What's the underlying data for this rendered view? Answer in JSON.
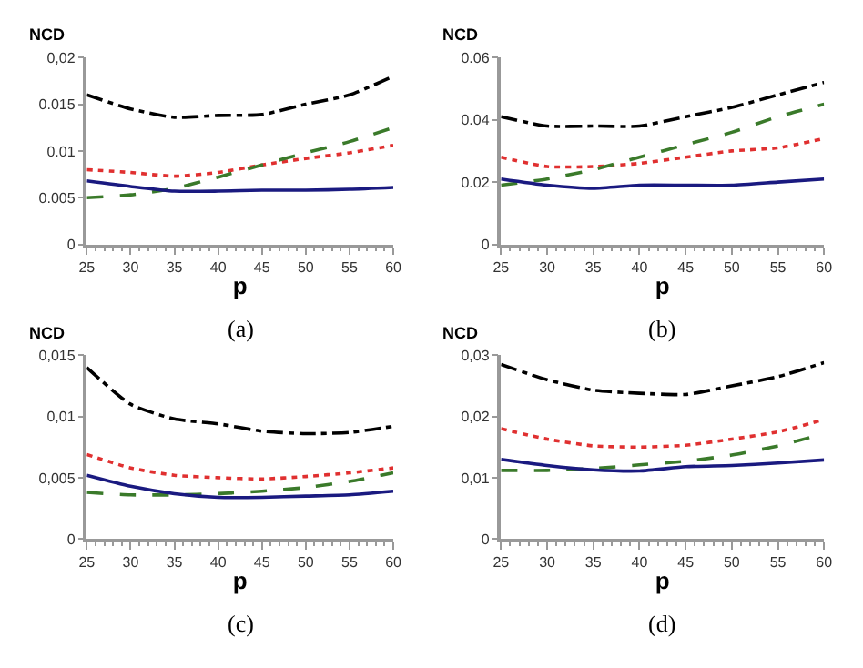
{
  "chart_data": [
    {
      "type": "line",
      "ylabel": "NCD",
      "xlabel": "p",
      "annotations": [
        "(a)"
      ],
      "x": [
        25,
        30,
        35,
        40,
        45,
        50,
        55,
        60
      ],
      "xlim": [
        25,
        60
      ],
      "xticks": [
        25,
        30,
        35,
        40,
        45,
        50,
        55,
        60
      ],
      "ylim": [
        0,
        0.02
      ],
      "yticks": [
        0,
        {
          "value": 0.005,
          "label": "0.005"
        },
        {
          "value": 0.01,
          "label": "0.01"
        },
        {
          "value": 0.015,
          "label": "0.015"
        },
        {
          "value": 0.02,
          "label": "0,02"
        }
      ],
      "marker": "none",
      "series": [
        {
          "color": "#000000",
          "line_style": "dashdot",
          "values": [
            0.016,
            0.0145,
            0.0136,
            0.0138,
            0.0139,
            0.015,
            0.016,
            0.018
          ]
        },
        {
          "color": "#e03030",
          "line_style": "dotted",
          "values": [
            0.008,
            0.0077,
            0.0073,
            0.0077,
            0.0085,
            0.0092,
            0.0098,
            0.0106
          ]
        },
        {
          "color": "#3a7a2a",
          "line_style": "dashed",
          "values": [
            0.005,
            0.0053,
            0.006,
            0.0072,
            0.0085,
            0.0098,
            0.011,
            0.0125
          ]
        },
        {
          "color": "#1a1a80",
          "line_style": "solid",
          "values": [
            0.0068,
            0.0062,
            0.0057,
            0.0057,
            0.0058,
            0.0058,
            0.0059,
            0.0061
          ]
        }
      ]
    },
    {
      "type": "line",
      "ylabel": "NCD",
      "xlabel": "p",
      "annotations": [
        "(b)"
      ],
      "x": [
        25,
        30,
        35,
        40,
        45,
        50,
        55,
        60
      ],
      "xlim": [
        25,
        60
      ],
      "xticks": [
        25,
        30,
        35,
        40,
        45,
        50,
        55,
        60
      ],
      "ylim": [
        0,
        0.06
      ],
      "yticks": [
        0,
        {
          "value": 0.02,
          "label": "0.02"
        },
        {
          "value": 0.04,
          "label": "0.04"
        },
        {
          "value": 0.06,
          "label": "0.06"
        }
      ],
      "marker": "none",
      "series": [
        {
          "color": "#000000",
          "line_style": "dashdot",
          "values": [
            0.041,
            0.038,
            0.038,
            0.038,
            0.041,
            0.044,
            0.048,
            0.052
          ]
        },
        {
          "color": "#e03030",
          "line_style": "dotted",
          "values": [
            0.028,
            0.025,
            0.025,
            0.026,
            0.028,
            0.03,
            0.031,
            0.034
          ]
        },
        {
          "color": "#3a7a2a",
          "line_style": "dashed",
          "values": [
            0.019,
            0.021,
            0.024,
            0.028,
            0.032,
            0.036,
            0.041,
            0.045
          ]
        },
        {
          "color": "#1a1a80",
          "line_style": "solid",
          "values": [
            0.021,
            0.019,
            0.018,
            0.019,
            0.019,
            0.019,
            0.02,
            0.021
          ]
        }
      ]
    },
    {
      "type": "line",
      "ylabel": "NCD",
      "xlabel": "p",
      "annotations": [
        "(c)"
      ],
      "x": [
        25,
        30,
        35,
        40,
        45,
        50,
        55,
        60
      ],
      "xlim": [
        25,
        60
      ],
      "xticks": [
        25,
        30,
        35,
        40,
        45,
        50,
        55,
        60
      ],
      "ylim": [
        0,
        0.015
      ],
      "yticks": [
        0,
        {
          "value": 0.005,
          "label": "0,005"
        },
        {
          "value": 0.01,
          "label": "0,01"
        },
        {
          "value": 0.015,
          "label": "0,015"
        }
      ],
      "marker": "none",
      "series": [
        {
          "color": "#000000",
          "line_style": "dashdot",
          "values": [
            0.014,
            0.011,
            0.0098,
            0.0094,
            0.0088,
            0.0086,
            0.0087,
            0.0092
          ]
        },
        {
          "color": "#e03030",
          "line_style": "dotted",
          "values": [
            0.0069,
            0.0058,
            0.0052,
            0.005,
            0.0049,
            0.0051,
            0.0054,
            0.0058
          ]
        },
        {
          "color": "#3a7a2a",
          "line_style": "dashed",
          "values": [
            0.0038,
            0.0036,
            0.0036,
            0.0037,
            0.0039,
            0.0042,
            0.0047,
            0.0054
          ]
        },
        {
          "color": "#1a1a80",
          "line_style": "solid",
          "values": [
            0.0052,
            0.0043,
            0.0037,
            0.0034,
            0.0034,
            0.0035,
            0.0036,
            0.0039
          ]
        }
      ]
    },
    {
      "type": "line",
      "ylabel": "NCD",
      "xlabel": "p",
      "annotations": [
        "(d)"
      ],
      "x": [
        25,
        30,
        35,
        40,
        45,
        50,
        55,
        60
      ],
      "xlim": [
        25,
        60
      ],
      "xticks": [
        25,
        30,
        35,
        40,
        45,
        50,
        55,
        60
      ],
      "ylim": [
        0,
        0.03
      ],
      "yticks": [
        0,
        {
          "value": 0.01,
          "label": "0,01"
        },
        {
          "value": 0.02,
          "label": "0,02"
        },
        {
          "value": 0.03,
          "label": "0,03"
        }
      ],
      "marker": "none",
      "series": [
        {
          "color": "#000000",
          "line_style": "dashdot",
          "values": [
            0.0285,
            0.026,
            0.0243,
            0.0238,
            0.0236,
            0.025,
            0.0265,
            0.0288
          ]
        },
        {
          "color": "#e03030",
          "line_style": "dotted",
          "values": [
            0.018,
            0.0163,
            0.0152,
            0.015,
            0.0153,
            0.0163,
            0.0175,
            0.0195
          ]
        },
        {
          "color": "#3a7a2a",
          "line_style": "dashed",
          "values": [
            0.0112,
            0.0112,
            0.0115,
            0.0121,
            0.0127,
            0.0137,
            0.0152,
            0.0172
          ]
        },
        {
          "color": "#1a1a80",
          "line_style": "solid",
          "values": [
            0.013,
            0.012,
            0.0113,
            0.0111,
            0.0118,
            0.012,
            0.0124,
            0.0129
          ]
        }
      ]
    }
  ]
}
